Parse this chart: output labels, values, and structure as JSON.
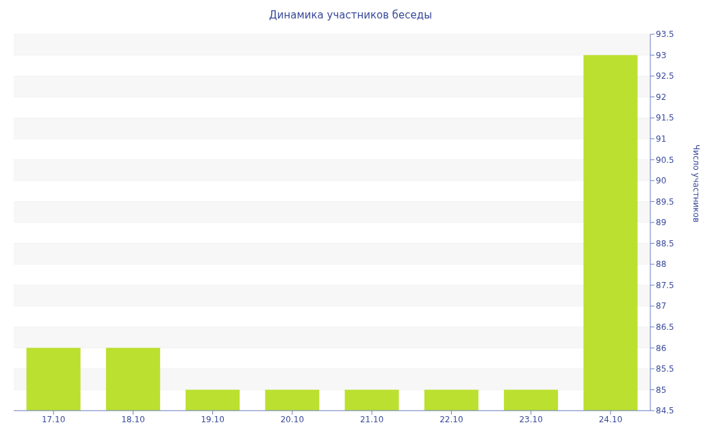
{
  "chart_data": {
    "type": "bar",
    "title": "Динамика участников беседы",
    "ylabel": "Число участников",
    "categories": [
      "17.10",
      "18.10",
      "19.10",
      "20.10",
      "21.10",
      "22.10",
      "23.10",
      "24.10"
    ],
    "values": [
      86,
      86,
      85,
      85,
      85,
      85,
      85,
      93
    ],
    "color": "#bbe02f",
    "ylim": [
      84.5,
      93.5
    ],
    "yticks": [
      84.5,
      85,
      85.5,
      86,
      86.5,
      87,
      87.5,
      88,
      88.5,
      89,
      89.5,
      90,
      90.5,
      91,
      91.5,
      92,
      92.5,
      93,
      93.5
    ],
    "grid": "y"
  }
}
